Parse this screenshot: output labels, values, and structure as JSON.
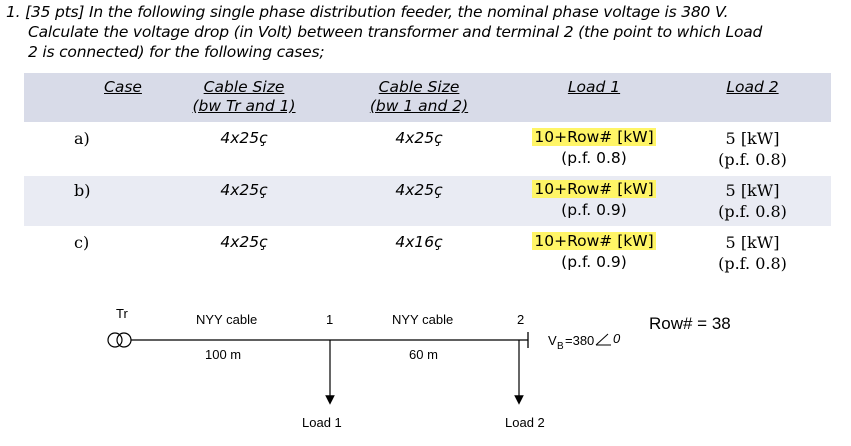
{
  "problem": {
    "line1": "1. [35 pts] In the following single phase distribution feeder, the nominal phase voltage is 380 V.",
    "line2": "Calculate the voltage drop (in Volt) between transformer and terminal 2 (the point to which Load",
    "line3": "2 is connected) for the following cases;"
  },
  "table": {
    "headers": {
      "case": "Case",
      "size1_a": "Cable Size",
      "size1_b": "(bw Tr and 1)",
      "size2_a": "Cable Size",
      "size2_b": "(bw 1 and 2)",
      "load1": "Load 1",
      "load2": "Load 2"
    },
    "rows": [
      {
        "case": "a)",
        "size1": "4x25ç",
        "size2": "4x25ç",
        "load1_power": "10+Row# [kW]",
        "load1_pf": "(p.f. 0.8)",
        "load2_power": "5 [kW]",
        "load2_pf": "(p.f. 0.8)"
      },
      {
        "case": "b)",
        "size1": "4x25ç",
        "size2": "4x25ç",
        "load1_power": "10+Row# [kW]",
        "load1_pf": "(p.f. 0.9)",
        "load2_power": "5 [kW]",
        "load2_pf": "(p.f. 0.8)"
      },
      {
        "case": "c)",
        "size1": "4x25ç",
        "size2": "4x16ç",
        "load1_power": "10+Row# [kW]",
        "load1_pf": "(p.f. 0.9)",
        "load2_power": "5 [kW]",
        "load2_pf": "(p.f. 0.8)"
      }
    ]
  },
  "diagram": {
    "tr_label": "Tr",
    "seg1_cable": "NYY cable",
    "seg1_length": "100 m",
    "node1": "1",
    "seg2_cable": "NYY cable",
    "seg2_length": "60 m",
    "node2": "2",
    "vb_main": "V",
    "vb_sub": "B",
    "vb_value": "=380",
    "vb_angle": "0",
    "load1": "Load 1",
    "load2": "Load 2"
  },
  "row_value": "Row# = 38"
}
